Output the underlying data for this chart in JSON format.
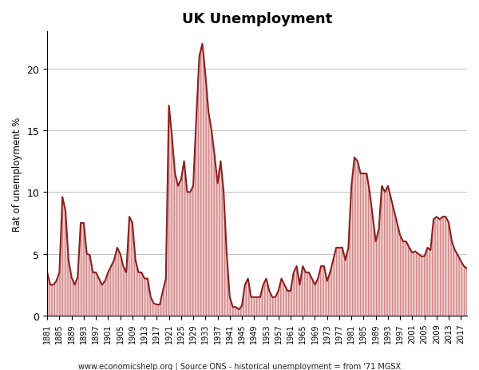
{
  "title": "UK Unemployment",
  "ylabel": "Rat of unemployment %",
  "footnote": "www.economicshelp.org | Source ONS - historical unemployment = from '71 MGSX",
  "line_color": "#8B2020",
  "fill_color": "#F5CCCC",
  "hatch_color": "#CC8888",
  "background_color": "#FFFFFF",
  "ylim": [
    0,
    23
  ],
  "yticks": [
    0,
    5,
    10,
    15,
    20
  ],
  "years": [
    1881,
    1882,
    1883,
    1884,
    1885,
    1886,
    1887,
    1888,
    1889,
    1890,
    1891,
    1892,
    1893,
    1894,
    1895,
    1896,
    1897,
    1898,
    1899,
    1900,
    1901,
    1902,
    1903,
    1904,
    1905,
    1906,
    1907,
    1908,
    1909,
    1910,
    1911,
    1912,
    1913,
    1914,
    1915,
    1916,
    1917,
    1918,
    1919,
    1920,
    1921,
    1922,
    1923,
    1924,
    1925,
    1926,
    1927,
    1928,
    1929,
    1930,
    1931,
    1932,
    1933,
    1934,
    1935,
    1936,
    1937,
    1938,
    1939,
    1940,
    1941,
    1942,
    1943,
    1944,
    1945,
    1946,
    1947,
    1948,
    1949,
    1950,
    1951,
    1952,
    1953,
    1954,
    1955,
    1956,
    1957,
    1958,
    1959,
    1960,
    1961,
    1962,
    1963,
    1964,
    1965,
    1966,
    1967,
    1968,
    1969,
    1970,
    1971,
    1972,
    1973,
    1974,
    1975,
    1976,
    1977,
    1978,
    1979,
    1980,
    1981,
    1982,
    1983,
    1984,
    1985,
    1986,
    1987,
    1988,
    1989,
    1990,
    1991,
    1992,
    1993,
    1994,
    1995,
    1996,
    1997,
    1998,
    1999,
    2000,
    2001,
    2002,
    2003,
    2004,
    2005,
    2006,
    2007,
    2008,
    2009,
    2010,
    2011,
    2012,
    2013,
    2014,
    2015,
    2016,
    2017,
    2018,
    2019
  ],
  "values": [
    3.5,
    2.5,
    2.5,
    2.8,
    3.5,
    9.6,
    8.5,
    4.5,
    3.1,
    2.5,
    3.1,
    7.5,
    7.5,
    5.0,
    4.9,
    3.5,
    3.5,
    3.0,
    2.5,
    2.8,
    3.5,
    4.0,
    4.5,
    5.5,
    5.0,
    4.0,
    3.5,
    8.0,
    7.5,
    4.5,
    3.5,
    3.5,
    3.0,
    3.0,
    1.5,
    1.0,
    0.9,
    0.9,
    2.0,
    3.0,
    17.0,
    14.5,
    11.5,
    10.5,
    11.0,
    12.5,
    10.0,
    10.0,
    10.5,
    16.0,
    21.0,
    22.0,
    19.5,
    16.5,
    15.0,
    13.0,
    10.7,
    12.5,
    10.0,
    5.0,
    1.5,
    0.7,
    0.7,
    0.5,
    0.8,
    2.5,
    3.0,
    1.5,
    1.5,
    1.5,
    1.5,
    2.5,
    3.0,
    2.0,
    1.5,
    1.5,
    2.0,
    3.0,
    2.5,
    2.0,
    2.0,
    3.5,
    4.0,
    2.5,
    4.0,
    3.5,
    3.5,
    3.0,
    2.5,
    3.0,
    4.0,
    4.0,
    2.8,
    3.5,
    4.5,
    5.5,
    5.5,
    5.5,
    4.5,
    5.5,
    10.5,
    12.8,
    12.5,
    11.5,
    11.5,
    11.5,
    10.0,
    8.0,
    6.0,
    7.0,
    10.5,
    10.0,
    10.5,
    9.5,
    8.5,
    7.5,
    6.5,
    6.0,
    6.0,
    5.5,
    5.1,
    5.2,
    5.0,
    4.8,
    4.8,
    5.5,
    5.3,
    7.8,
    8.0,
    7.8,
    8.0,
    8.0,
    7.5,
    6.0,
    5.3,
    4.9,
    4.4,
    4.0,
    3.8
  ]
}
